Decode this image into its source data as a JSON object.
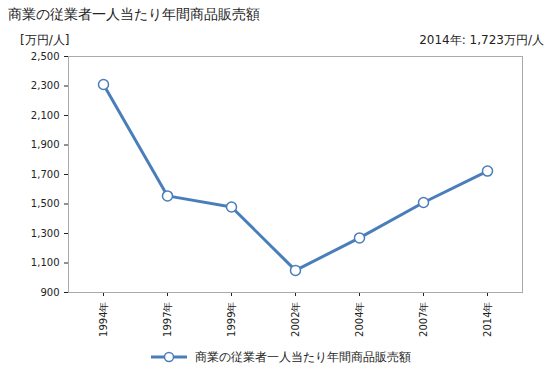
{
  "chart_data": {
    "type": "line",
    "title": "商業の従業者一人当たり年間商品販売額",
    "y_label": "[万円/人]",
    "annotation": "2014年: 1,723万円/人",
    "categories": [
      "1994年",
      "1997年",
      "1999年",
      "2002年",
      "2004年",
      "2007年",
      "2014年"
    ],
    "series": [
      {
        "name": "商業の従業者一人当たり年間商品販売額",
        "color": "#4a7ebb",
        "marker": "circle",
        "values": [
          2310,
          1555,
          1480,
          1050,
          1270,
          1510,
          1723
        ]
      }
    ],
    "ylim": [
      900,
      2500
    ],
    "yticks": [
      900,
      {
        "value": 1100,
        "label": "1,100"
      },
      {
        "value": 1300,
        "label": "1,300"
      },
      {
        "value": 1500,
        "label": "1,500"
      },
      {
        "value": 1700,
        "label": "1,700"
      },
      {
        "value": 1900,
        "label": "1,900"
      },
      {
        "value": 2100,
        "label": "2,100"
      },
      {
        "value": 2300,
        "label": "2,300"
      },
      {
        "value": 2500,
        "label": "2,500"
      }
    ],
    "grid": false,
    "legend": "bottom"
  }
}
